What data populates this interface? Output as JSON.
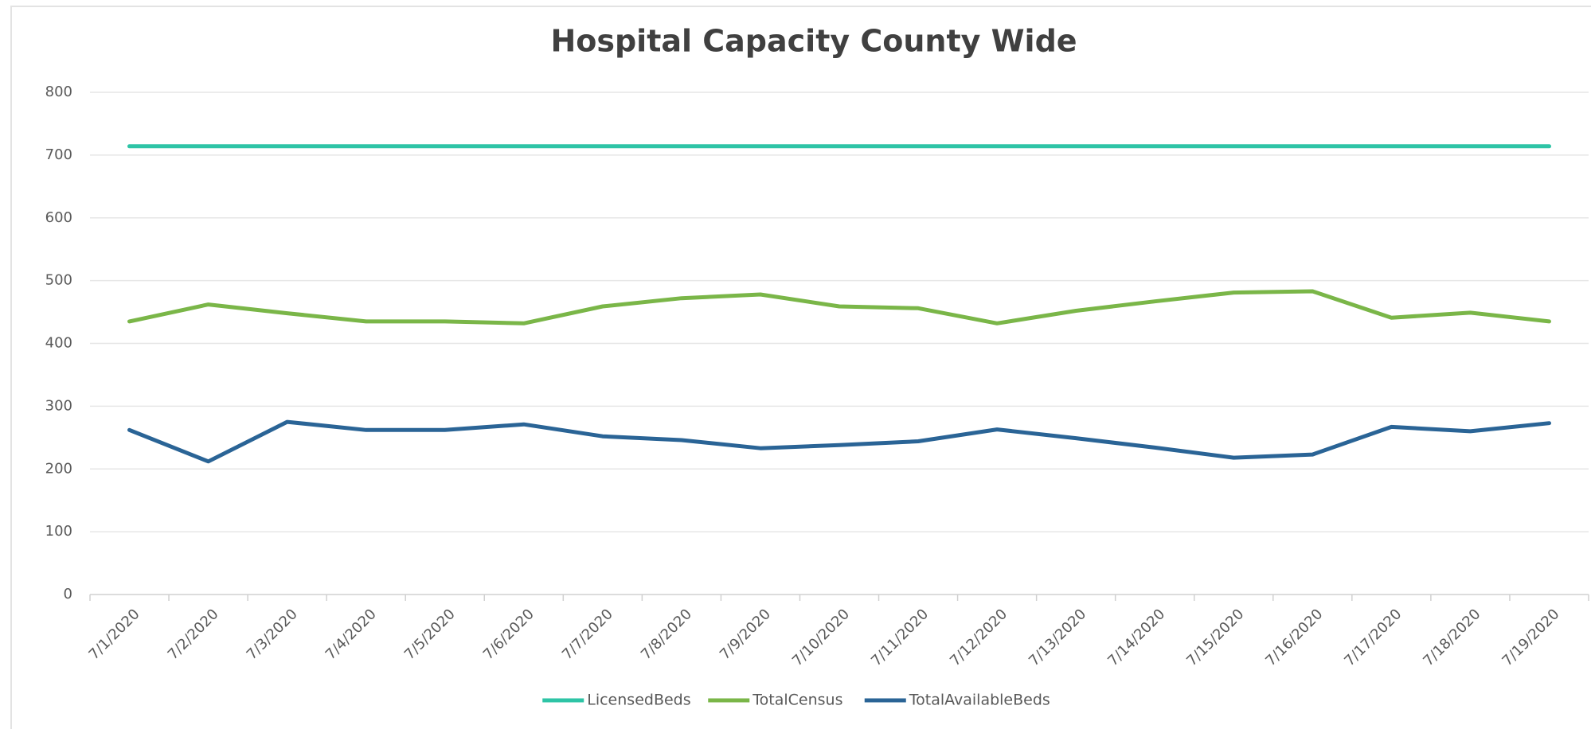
{
  "chart_data": {
    "type": "line",
    "title": "Hospital Capacity County Wide",
    "categories": [
      "7/1/2020",
      "7/2/2020",
      "7/3/2020",
      "7/4/2020",
      "7/5/2020",
      "7/6/2020",
      "7/7/2020",
      "7/8/2020",
      "7/9/2020",
      "7/10/2020",
      "7/11/2020",
      "7/12/2020",
      "7/13/2020",
      "7/14/2020",
      "7/15/2020",
      "7/16/2020",
      "7/17/2020",
      "7/18/2020",
      "7/19/2020"
    ],
    "series": [
      {
        "name": "LicensedBeds",
        "color": "#2ec4a6",
        "values": [
          714,
          714,
          714,
          714,
          714,
          714,
          714,
          714,
          714,
          714,
          714,
          714,
          714,
          714,
          714,
          714,
          714,
          714,
          714
        ]
      },
      {
        "name": "TotalCensus",
        "color": "#7ab648",
        "values": [
          435,
          462,
          448,
          435,
          435,
          432,
          459,
          472,
          478,
          459,
          456,
          432,
          452,
          467,
          481,
          483,
          441,
          449,
          435
        ]
      },
      {
        "name": "TotalAvailableBeds",
        "color": "#2a6496",
        "values": [
          262,
          212,
          275,
          262,
          262,
          271,
          252,
          246,
          233,
          238,
          244,
          263,
          249,
          234,
          218,
          223,
          267,
          260,
          273
        ]
      }
    ],
    "ylim": [
      0,
      800
    ],
    "yticks": [
      0,
      100,
      200,
      300,
      400,
      500,
      600,
      700,
      800
    ],
    "grid": true,
    "legend": "bottom"
  }
}
